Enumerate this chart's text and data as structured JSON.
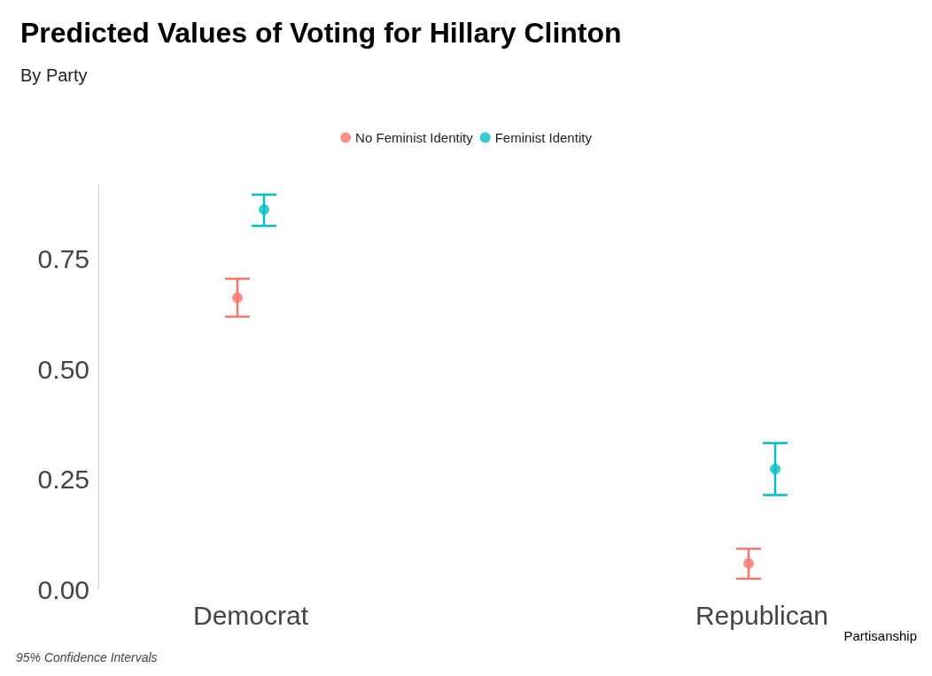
{
  "chart_data": {
    "type": "scatter",
    "title": "Predicted Values of Voting for Hillary Clinton",
    "subtitle": "By Party",
    "xlabel": "Partisanship",
    "annotations": [
      "95% Confidence Intervals"
    ],
    "categories": [
      "Democrat",
      "Republican"
    ],
    "series": [
      {
        "name": "No Feminist Identity",
        "color": "#f8766d",
        "values": [
          0.662,
          0.059
        ],
        "errors": [
          [
            0.619,
            0.705
          ],
          [
            0.024,
            0.092
          ]
        ]
      },
      {
        "name": "Feminist Identity",
        "color": "#00bfc4",
        "values": [
          0.862,
          0.273
        ],
        "errors": [
          [
            0.825,
            0.896
          ],
          [
            0.214,
            0.332
          ]
        ]
      }
    ],
    "ylim": [
      0,
      0.92
    ],
    "yticks": [
      {
        "value": 0,
        "label": "0.00"
      },
      {
        "value": 0.25,
        "label": "0.25"
      },
      {
        "value": 0.5,
        "label": "0.50"
      },
      {
        "value": 0.75,
        "label": "0.75"
      }
    ],
    "grid": false,
    "legend": "top",
    "marker": "circle"
  }
}
